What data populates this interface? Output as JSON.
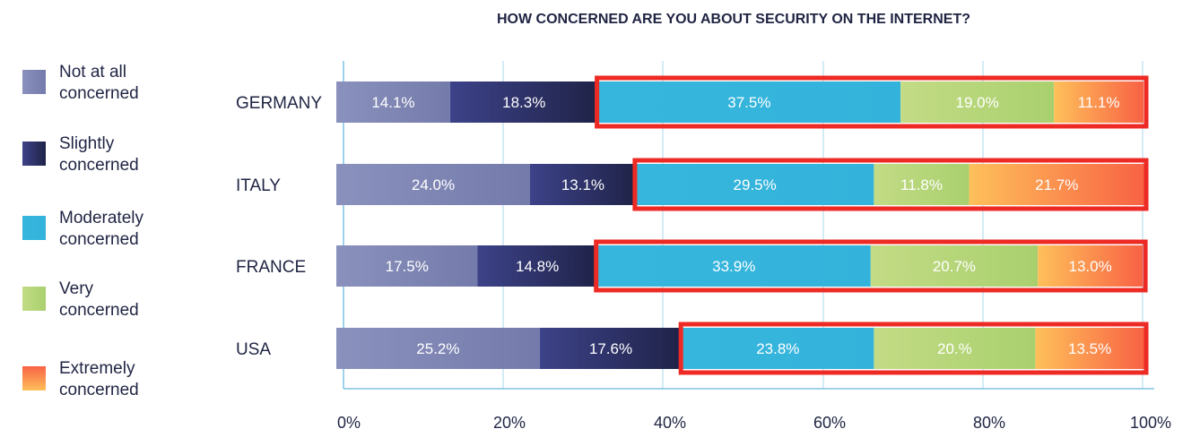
{
  "chart_data": {
    "type": "bar",
    "orientation": "horizontal",
    "stacked": true,
    "title": "HOW CONCERNED ARE YOU ABOUT SECURITY ON THE INTERNET?",
    "categories": [
      "GERMANY",
      "ITALY",
      "FRANCE",
      "USA"
    ],
    "series": [
      {
        "name": "Not at all concerned",
        "color": "#7f86b4",
        "values": [
          14.1,
          24.0,
          17.5,
          25.2
        ]
      },
      {
        "name": "Slightly concerned",
        "color": "#2e3370",
        "values": [
          18.3,
          13.1,
          14.8,
          17.6
        ]
      },
      {
        "name": "Moderately concerned",
        "color": "#36b5dc",
        "values": [
          37.5,
          29.5,
          33.9,
          23.8
        ]
      },
      {
        "name": "Very concerned",
        "color": "#b6d67a",
        "values": [
          19.0,
          11.8,
          20.7,
          20.0
        ]
      },
      {
        "name": "Extremely concerned",
        "color": "#fb8a4c",
        "values": [
          11.1,
          21.7,
          13.0,
          13.5
        ]
      }
    ],
    "value_labels": [
      [
        "14.1%",
        "18.3%",
        "37.5%",
        "19.0%",
        "11.1%"
      ],
      [
        "24.0%",
        "13.1%",
        "29.5%",
        "11.8%",
        "21.7%"
      ],
      [
        "17.5%",
        "14.8%",
        "33.9%",
        "20.7%",
        "13.0%"
      ],
      [
        "25.2%",
        "17.6%",
        "23.8%",
        "20.%",
        "13.5%"
      ]
    ],
    "xlim": [
      0,
      100
    ],
    "x_ticks": [
      "0%",
      "20%",
      "40%",
      "60%",
      "80%",
      "100%"
    ],
    "grid": true,
    "legend_position": "left",
    "highlight": {
      "series_from": "Moderately concerned",
      "color": "#ee2a24"
    }
  }
}
